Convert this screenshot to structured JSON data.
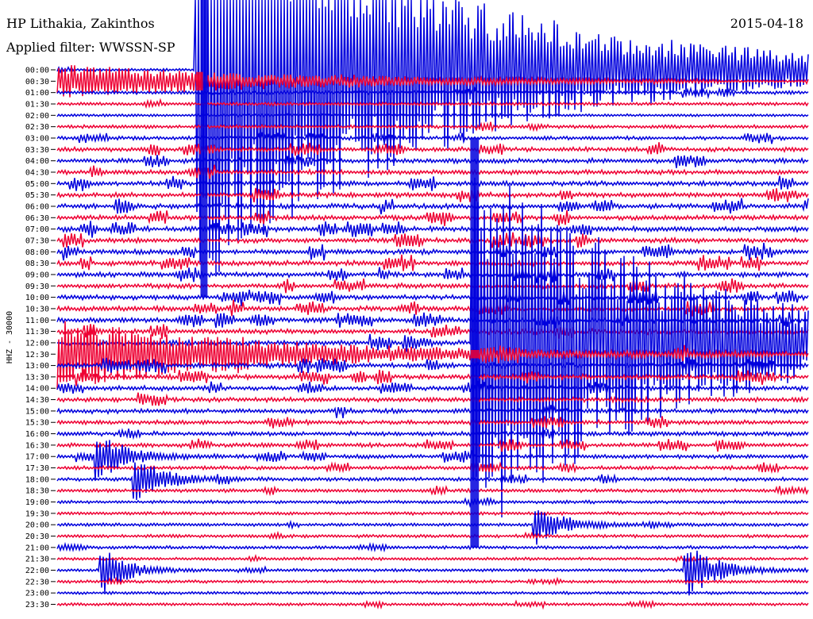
{
  "header": {
    "station": "HP Lithakia, Zakinthos",
    "date": "2015-04-18",
    "filter": "Applied filter: WWSSN-SP"
  },
  "chart_data": {
    "type": "line",
    "title": "HP Lithakia, Zakinthos",
    "channel_label": "HHZ - 30000",
    "row_labels": [
      "00:00",
      "00:30",
      "01:00",
      "01:30",
      "02:00",
      "02:30",
      "03:00",
      "03:30",
      "04:00",
      "04:30",
      "05:00",
      "05:30",
      "06:00",
      "06:30",
      "07:00",
      "07:30",
      "08:00",
      "08:30",
      "09:00",
      "09:30",
      "10:00",
      "10:30",
      "11:00",
      "11:30",
      "12:00",
      "12:30",
      "13:00",
      "13:30",
      "14:00",
      "14:30",
      "15:00",
      "15:30",
      "16:00",
      "16:30",
      "17:00",
      "17:30",
      "18:00",
      "18:30",
      "19:00",
      "19:30",
      "20:00",
      "20:30",
      "21:00",
      "21:30",
      "22:00",
      "22:30",
      "23:00",
      "23:30"
    ],
    "row_colors": [
      "#0000dd",
      "#ee0033"
    ],
    "row_minutes": 30,
    "noise_amplitude": [
      0.3,
      0.2,
      0.5,
      0.4,
      0.2,
      0.5,
      0.6,
      0.8,
      0.9,
      0.9,
      1.0,
      1.0,
      1.0,
      1.0,
      1.0,
      1.0,
      1.0,
      1.0,
      1.0,
      1.0,
      1.0,
      1.0,
      1.0,
      1.0,
      1.0,
      1.0,
      1.0,
      1.0,
      0.9,
      0.9,
      0.9,
      0.8,
      0.8,
      0.7,
      0.7,
      0.6,
      0.5,
      0.5,
      0.4,
      0.4,
      0.4,
      0.4,
      0.4,
      0.3,
      0.3,
      0.3,
      0.3,
      0.3
    ],
    "events": [
      {
        "row": 0,
        "minute": 5.5,
        "amplitude": 20,
        "duration_min": 17
      },
      {
        "row": 24,
        "minute": 16.5,
        "amplitude": 18,
        "duration_min": 14
      },
      {
        "row": 34,
        "minute": 1.5,
        "amplitude": 2.5,
        "duration_min": 2
      },
      {
        "row": 36,
        "minute": 3.0,
        "amplitude": 2.5,
        "duration_min": 2
      },
      {
        "row": 40,
        "minute": 19.0,
        "amplitude": 2.0,
        "duration_min": 2
      },
      {
        "row": 44,
        "minute": 1.7,
        "amplitude": 3.0,
        "duration_min": 1.5
      },
      {
        "row": 44,
        "minute": 25.0,
        "amplitude": 3.0,
        "duration_min": 2
      }
    ]
  }
}
